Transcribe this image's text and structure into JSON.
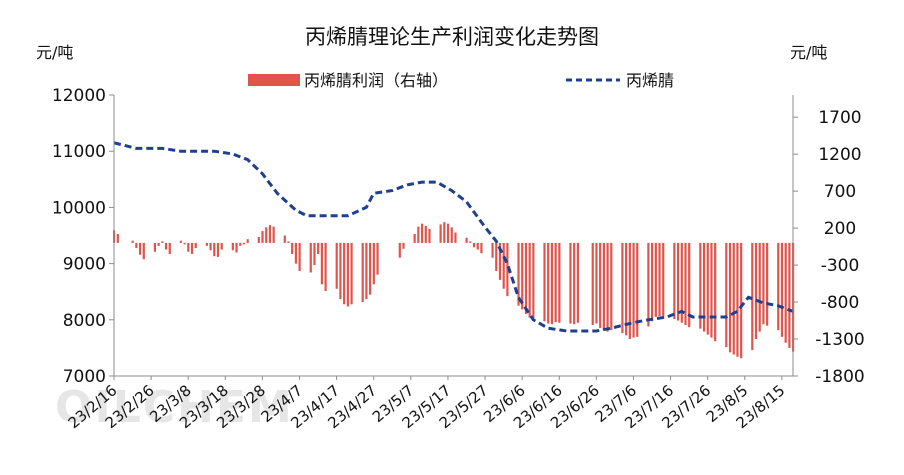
{
  "chart_data": {
    "type": "bar+line",
    "title": "丙烯腈理论生产利润变化走势图",
    "left_unit": "元/吨",
    "right_unit": "元/吨",
    "watermark": "OILCHEM",
    "legend": [
      {
        "name": "丙烯腈利润（右轴）",
        "kind": "bar",
        "color": "#e0544c"
      },
      {
        "name": "丙烯腈",
        "kind": "dashed-line",
        "color": "#1f3f8f"
      }
    ],
    "left_axis": {
      "min": 7000,
      "max": 12000,
      "ticks": [
        "12000",
        "11000",
        "10000",
        "9000",
        "8000",
        "7000"
      ]
    },
    "right_axis": {
      "min": -1800,
      "max": 2000,
      "ticks": [
        "1700",
        "1200",
        "700",
        "200",
        "-300",
        "-800",
        "-1300",
        "-1800"
      ]
    },
    "x_axis": {
      "start": "2023-02-16",
      "end": "2023-08-18",
      "tick_labels": [
        "23/2/16",
        "23/2/26",
        "23/3/8",
        "23/3/18",
        "23/3/28",
        "23/4/7",
        "23/4/17",
        "23/4/27",
        "23/5/7",
        "23/5/17",
        "23/5/27",
        "23/6/6",
        "23/6/16",
        "23/6/26",
        "23/7/6",
        "23/7/16",
        "23/7/26",
        "23/8/5",
        "23/8/15"
      ]
    },
    "price_series": {
      "name": "丙烯腈",
      "points": [
        [
          "2023-02-16",
          11150
        ],
        [
          "2023-02-22",
          11050
        ],
        [
          "2023-03-01",
          11050
        ],
        [
          "2023-03-06",
          11000
        ],
        [
          "2023-03-15",
          11000
        ],
        [
          "2023-03-20",
          10950
        ],
        [
          "2023-03-24",
          10850
        ],
        [
          "2023-03-28",
          10600
        ],
        [
          "2023-04-01",
          10250
        ],
        [
          "2023-04-06",
          9950
        ],
        [
          "2023-04-09",
          9850
        ],
        [
          "2023-04-13",
          9850
        ],
        [
          "2023-04-20",
          9850
        ],
        [
          "2023-04-25",
          10000
        ],
        [
          "2023-04-27",
          10250
        ],
        [
          "2023-05-02",
          10300
        ],
        [
          "2023-05-06",
          10400
        ],
        [
          "2023-05-10",
          10450
        ],
        [
          "2023-05-14",
          10450
        ],
        [
          "2023-05-18",
          10300
        ],
        [
          "2023-05-22",
          10100
        ],
        [
          "2023-05-27",
          9650
        ],
        [
          "2023-05-30",
          9400
        ],
        [
          "2023-06-02",
          9000
        ],
        [
          "2023-06-05",
          8400
        ],
        [
          "2023-06-09",
          8000
        ],
        [
          "2023-06-13",
          7850
        ],
        [
          "2023-06-18",
          7800
        ],
        [
          "2023-06-26",
          7800
        ],
        [
          "2023-06-30",
          7850
        ],
        [
          "2023-07-06",
          7950
        ],
        [
          "2023-07-10",
          8000
        ],
        [
          "2023-07-15",
          8050
        ],
        [
          "2023-07-19",
          8150
        ],
        [
          "2023-07-22",
          8050
        ],
        [
          "2023-07-31",
          8050
        ],
        [
          "2023-08-03",
          8150
        ],
        [
          "2023-08-06",
          8400
        ],
        [
          "2023-08-10",
          8300
        ],
        [
          "2023-08-14",
          8250
        ],
        [
          "2023-08-18",
          8150
        ]
      ]
    },
    "profit_series": {
      "name": "丙烯腈利润（右轴）",
      "points": [
        [
          "2023-02-16",
          170
        ],
        [
          "2023-02-17",
          120
        ],
        [
          "2023-02-21",
          30
        ],
        [
          "2023-02-22",
          -70
        ],
        [
          "2023-02-23",
          -160
        ],
        [
          "2023-02-24",
          -220
        ],
        [
          "2023-02-27",
          -120
        ],
        [
          "2023-02-28",
          -40
        ],
        [
          "2023-03-01",
          20
        ],
        [
          "2023-03-02",
          -90
        ],
        [
          "2023-03-03",
          -150
        ],
        [
          "2023-03-06",
          30
        ],
        [
          "2023-03-07",
          -20
        ],
        [
          "2023-03-08",
          -120
        ],
        [
          "2023-03-09",
          -150
        ],
        [
          "2023-03-10",
          -70
        ],
        [
          "2023-03-13",
          -40
        ],
        [
          "2023-03-14",
          -100
        ],
        [
          "2023-03-15",
          -180
        ],
        [
          "2023-03-16",
          -190
        ],
        [
          "2023-03-17",
          -90
        ],
        [
          "2023-03-20",
          -100
        ],
        [
          "2023-03-21",
          -130
        ],
        [
          "2023-03-22",
          -40
        ],
        [
          "2023-03-23",
          -20
        ],
        [
          "2023-03-24",
          50
        ],
        [
          "2023-03-27",
          80
        ],
        [
          "2023-03-28",
          160
        ],
        [
          "2023-03-29",
          210
        ],
        [
          "2023-03-30",
          240
        ],
        [
          "2023-03-31",
          220
        ],
        [
          "2023-04-03",
          100
        ],
        [
          "2023-04-04",
          20
        ],
        [
          "2023-04-05",
          -150
        ],
        [
          "2023-04-06",
          -280
        ],
        [
          "2023-04-07",
          -380
        ],
        [
          "2023-04-10",
          -400
        ],
        [
          "2023-04-11",
          -300
        ],
        [
          "2023-04-12",
          -150
        ],
        [
          "2023-04-13",
          -560
        ],
        [
          "2023-04-14",
          -650
        ],
        [
          "2023-04-17",
          -620
        ],
        [
          "2023-04-18",
          -760
        ],
        [
          "2023-04-19",
          -830
        ],
        [
          "2023-04-20",
          -860
        ],
        [
          "2023-04-21",
          -830
        ],
        [
          "2023-04-24",
          -800
        ],
        [
          "2023-04-25",
          -760
        ],
        [
          "2023-04-26",
          -700
        ],
        [
          "2023-04-27",
          -560
        ],
        [
          "2023-04-28",
          -430
        ],
        [
          "2023-05-04",
          -200
        ],
        [
          "2023-05-05",
          -80
        ],
        [
          "2023-05-08",
          120
        ],
        [
          "2023-05-09",
          220
        ],
        [
          "2023-05-10",
          260
        ],
        [
          "2023-05-11",
          230
        ],
        [
          "2023-05-12",
          190
        ],
        [
          "2023-05-15",
          250
        ],
        [
          "2023-05-16",
          280
        ],
        [
          "2023-05-17",
          260
        ],
        [
          "2023-05-18",
          210
        ],
        [
          "2023-05-19",
          140
        ],
        [
          "2023-05-22",
          70
        ],
        [
          "2023-05-23",
          20
        ],
        [
          "2023-05-24",
          -60
        ],
        [
          "2023-05-25",
          -90
        ],
        [
          "2023-05-26",
          -140
        ],
        [
          "2023-05-29",
          -200
        ],
        [
          "2023-05-30",
          -380
        ],
        [
          "2023-05-31",
          -500
        ],
        [
          "2023-06-01",
          -620
        ],
        [
          "2023-06-02",
          -720
        ],
        [
          "2023-06-05",
          -850
        ],
        [
          "2023-06-06",
          -900
        ],
        [
          "2023-06-07",
          -960
        ],
        [
          "2023-06-08",
          -1010
        ],
        [
          "2023-06-09",
          -1020
        ],
        [
          "2023-06-12",
          -1060
        ],
        [
          "2023-06-13",
          -1090
        ],
        [
          "2023-06-14",
          -1100
        ],
        [
          "2023-06-15",
          -1070
        ],
        [
          "2023-06-16",
          -1080
        ],
        [
          "2023-06-19",
          -1090
        ],
        [
          "2023-06-20",
          -1100
        ],
        [
          "2023-06-21",
          -1080
        ],
        [
          "2023-06-25",
          -1110
        ],
        [
          "2023-06-26",
          -1090
        ],
        [
          "2023-06-27",
          -1150
        ],
        [
          "2023-06-28",
          -1180
        ],
        [
          "2023-06-29",
          -1200
        ],
        [
          "2023-06-30",
          -1180
        ],
        [
          "2023-07-03",
          -1220
        ],
        [
          "2023-07-04",
          -1250
        ],
        [
          "2023-07-05",
          -1300
        ],
        [
          "2023-07-06",
          -1280
        ],
        [
          "2023-07-07",
          -1270
        ],
        [
          "2023-07-10",
          -1130
        ],
        [
          "2023-07-11",
          -1060
        ],
        [
          "2023-07-12",
          -1000
        ],
        [
          "2023-07-13",
          -990
        ],
        [
          "2023-07-14",
          -1020
        ],
        [
          "2023-07-17",
          -1030
        ],
        [
          "2023-07-18",
          -1050
        ],
        [
          "2023-07-19",
          -1080
        ],
        [
          "2023-07-20",
          -1110
        ],
        [
          "2023-07-21",
          -1140
        ],
        [
          "2023-07-24",
          -1160
        ],
        [
          "2023-07-25",
          -1200
        ],
        [
          "2023-07-26",
          -1240
        ],
        [
          "2023-07-27",
          -1280
        ],
        [
          "2023-07-28",
          -1330
        ],
        [
          "2023-07-31",
          -1410
        ],
        [
          "2023-08-01",
          -1480
        ],
        [
          "2023-08-02",
          -1510
        ],
        [
          "2023-08-03",
          -1540
        ],
        [
          "2023-08-04",
          -1560
        ],
        [
          "2023-08-07",
          -1450
        ],
        [
          "2023-08-08",
          -1300
        ],
        [
          "2023-08-09",
          -1200
        ],
        [
          "2023-08-10",
          -1100
        ],
        [
          "2023-08-11",
          -1120
        ],
        [
          "2023-08-14",
          -1180
        ],
        [
          "2023-08-15",
          -1270
        ],
        [
          "2023-08-16",
          -1350
        ],
        [
          "2023-08-17",
          -1420
        ],
        [
          "2023-08-18",
          -1470
        ]
      ]
    }
  }
}
